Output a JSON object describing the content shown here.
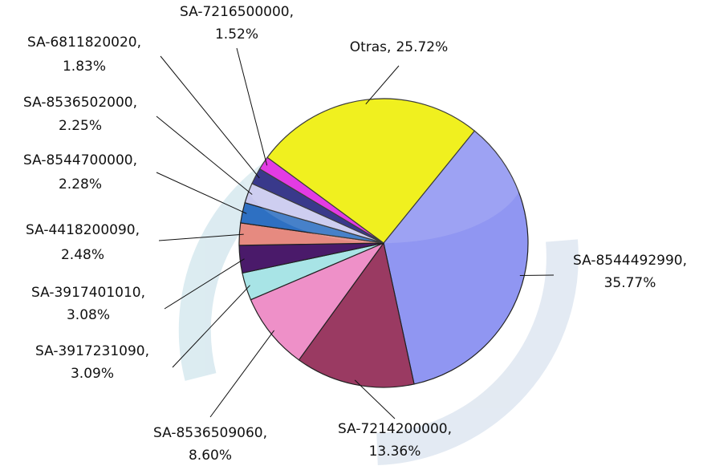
{
  "chart_data": {
    "type": "pie",
    "categories": [
      "SA-8544492990,",
      "SA-7214200000,",
      "SA-8536509060,",
      "SA-3917231090,",
      "SA-3917401010,",
      "SA-4418200090,",
      "SA-8544700000,",
      "SA-8536502000,",
      "SA-6811820020,",
      "SA-7216500000,",
      "Otras,"
    ],
    "values": [
      35.77,
      13.36,
      8.6,
      3.09,
      3.08,
      2.48,
      2.28,
      2.25,
      1.83,
      1.52,
      25.72
    ],
    "value_labels": [
      "35.77%",
      "13.36%",
      "8.60%",
      "3.09%",
      "3.08%",
      "2.48%",
      "2.28%",
      "2.25%",
      "1.83%",
      "1.52%",
      "25.72%"
    ],
    "colors": [
      "#9096f2",
      "#9a3a62",
      "#ee90c8",
      "#a8e4e6",
      "#4a1a6a",
      "#e68a80",
      "#2e70c2",
      "#c8c8ee",
      "#1e1e7c",
      "#e020e0",
      "#eeee00"
    ]
  }
}
